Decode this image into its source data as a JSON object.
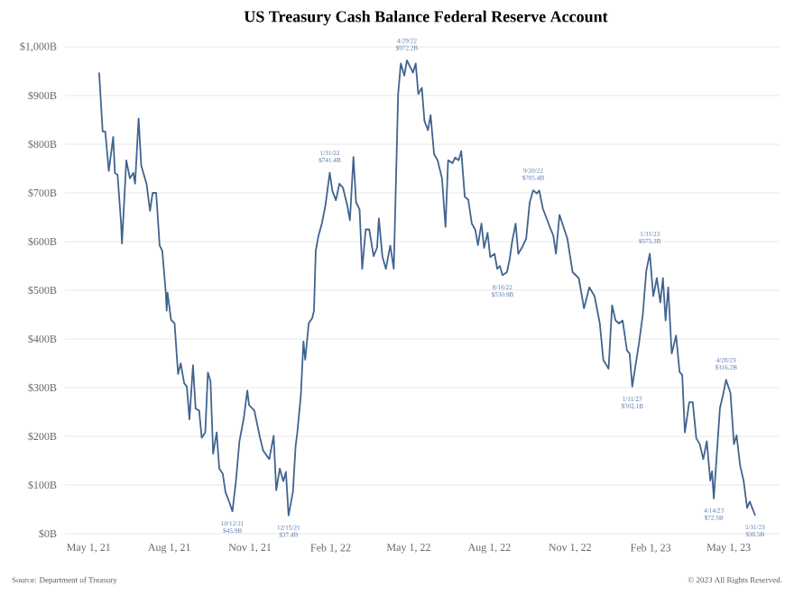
{
  "chart_data": {
    "type": "line",
    "title": "US Treasury Cash Balance Federal Reserve Account",
    "xlim": [
      "2021-04-04",
      "2023-06-28"
    ],
    "xticks": [
      {
        "value": "2021-05-01",
        "label": "May 1, 21"
      },
      {
        "value": "2021-08-01",
        "label": "Aug 1, 21"
      },
      {
        "value": "2021-11-01",
        "label": "Nov 1, 21"
      },
      {
        "value": "2022-02-01",
        "label": "Feb 1, 22"
      },
      {
        "value": "2022-05-01",
        "label": "May 1, 22"
      },
      {
        "value": "2022-08-01",
        "label": "Aug 1, 22"
      },
      {
        "value": "2022-11-01",
        "label": "Nov 1, 22"
      },
      {
        "value": "2023-02-01",
        "label": "Feb 1, 23"
      },
      {
        "value": "2023-05-01",
        "label": "May 1, 23"
      }
    ],
    "ylim": [
      0,
      1000
    ],
    "yticks": [
      {
        "value": 0,
        "label": "$0B"
      },
      {
        "value": 100,
        "label": "$100B"
      },
      {
        "value": 200,
        "label": "$200B"
      },
      {
        "value": 300,
        "label": "$300B"
      },
      {
        "value": 400,
        "label": "$400B"
      },
      {
        "value": 500,
        "label": "$500B"
      },
      {
        "value": 600,
        "label": "$600B"
      },
      {
        "value": 700,
        "label": "$700B"
      },
      {
        "value": 800,
        "label": "$800B"
      },
      {
        "value": 900,
        "label": "$900B"
      },
      {
        "value": 1000,
        "label": "$1,000B"
      }
    ],
    "grid": "y",
    "series": [
      {
        "color": "#41648f",
        "x": [
          "2021-05-13",
          "2021-05-17",
          "2021-05-20",
          "2021-05-24",
          "2021-05-29",
          "2021-05-31",
          "2021-06-03",
          "2021-06-07",
          "2021-06-08",
          "2021-06-13",
          "2021-06-17",
          "2021-06-21",
          "2021-06-23",
          "2021-06-27",
          "2021-06-30",
          "2021-07-06",
          "2021-07-10",
          "2021-07-13",
          "2021-07-17",
          "2021-07-21",
          "2021-07-24",
          "2021-07-28",
          "2021-07-29",
          "2021-07-30",
          "2021-08-03",
          "2021-08-07",
          "2021-08-11",
          "2021-08-14",
          "2021-08-18",
          "2021-08-21",
          "2021-08-24",
          "2021-08-28",
          "2021-08-31",
          "2021-09-04",
          "2021-09-07",
          "2021-09-11",
          "2021-09-14",
          "2021-09-17",
          "2021-09-20",
          "2021-09-24",
          "2021-09-27",
          "2021-10-01",
          "2021-10-04",
          "2021-10-08",
          "2021-10-12",
          "2021-10-16",
          "2021-10-20",
          "2021-10-25",
          "2021-10-29",
          "2021-10-31",
          "2021-11-06",
          "2021-11-12",
          "2021-11-16",
          "2021-11-23",
          "2021-11-28",
          "2021-12-01",
          "2021-12-05",
          "2021-12-09",
          "2021-12-12",
          "2021-12-15",
          "2021-12-20",
          "2021-12-23",
          "2021-12-25",
          "2021-12-29",
          "2022-01-01",
          "2022-01-03",
          "2022-01-07",
          "2022-01-11",
          "2022-01-13",
          "2022-01-15",
          "2022-01-18",
          "2022-01-22",
          "2022-01-26",
          "2022-01-31",
          "2022-02-03",
          "2022-02-07",
          "2022-02-11",
          "2022-02-15",
          "2022-02-20",
          "2022-02-23",
          "2022-02-27",
          "2022-03-02",
          "2022-03-06",
          "2022-03-09",
          "2022-03-13",
          "2022-03-17",
          "2022-03-22",
          "2022-03-26",
          "2022-03-28",
          "2022-04-01",
          "2022-04-05",
          "2022-04-10",
          "2022-04-14",
          "2022-04-19",
          "2022-04-22",
          "2022-04-26",
          "2022-04-29",
          "2022-05-06",
          "2022-05-09",
          "2022-05-12",
          "2022-05-16",
          "2022-05-19",
          "2022-05-23",
          "2022-05-26",
          "2022-05-30",
          "2022-06-03",
          "2022-06-08",
          "2022-06-12",
          "2022-06-15",
          "2022-06-20",
          "2022-06-23",
          "2022-06-27",
          "2022-06-30",
          "2022-07-04",
          "2022-07-08",
          "2022-07-12",
          "2022-07-16",
          "2022-07-19",
          "2022-07-23",
          "2022-07-26",
          "2022-07-30",
          "2022-08-02",
          "2022-08-07",
          "2022-08-10",
          "2022-08-13",
          "2022-08-16",
          "2022-08-21",
          "2022-08-24",
          "2022-08-27",
          "2022-08-31",
          "2022-09-03",
          "2022-09-07",
          "2022-09-12",
          "2022-09-16",
          "2022-09-20",
          "2022-09-24",
          "2022-09-27",
          "2022-10-01",
          "2022-10-05",
          "2022-10-09",
          "2022-10-13",
          "2022-10-16",
          "2022-10-20",
          "2022-10-29",
          "2022-11-04",
          "2022-11-11",
          "2022-11-17",
          "2022-11-23",
          "2022-11-29",
          "2022-12-05",
          "2022-12-09",
          "2022-12-15",
          "2022-12-19",
          "2022-12-23",
          "2022-12-27",
          "2022-12-31",
          "2023-01-05",
          "2023-01-08",
          "2023-01-11",
          "2023-01-19",
          "2023-01-23",
          "2023-01-27",
          "2023-01-31",
          "2023-02-04",
          "2023-02-08",
          "2023-02-12",
          "2023-02-15",
          "2023-02-18",
          "2023-02-21",
          "2023-02-25",
          "2023-03-02",
          "2023-03-06",
          "2023-03-09",
          "2023-03-12",
          "2023-03-17",
          "2023-03-21",
          "2023-03-25",
          "2023-03-29",
          "2023-04-02",
          "2023-04-06",
          "2023-04-10",
          "2023-04-12",
          "2023-04-14",
          "2023-04-21",
          "2023-04-25",
          "2023-04-28",
          "2023-05-03",
          "2023-05-07",
          "2023-05-10",
          "2023-05-14",
          "2023-05-18",
          "2023-05-22",
          "2023-05-25",
          "2023-05-31"
        ],
        "values": [
          946,
          826,
          826,
          745,
          815,
          741,
          737,
          637,
          596,
          767,
          730,
          741,
          719,
          853,
          756,
          719,
          663,
          700,
          700,
          592,
          581,
          495,
          458,
          495,
          439,
          432,
          328,
          350,
          309,
          302,
          235,
          346,
          257,
          253,
          197,
          208,
          331,
          313,
          164,
          208,
          134,
          123,
          86,
          67,
          45.9,
          108,
          190,
          238,
          294,
          264,
          253,
          201,
          171,
          153,
          201,
          89,
          134,
          108,
          127,
          37.4,
          86,
          179,
          208,
          283,
          395,
          357,
          432,
          443,
          458,
          581,
          611,
          637,
          674,
          741.4,
          704,
          685,
          719,
          711,
          674,
          644,
          774,
          681,
          666,
          544,
          625,
          625,
          570,
          588,
          648,
          570,
          544,
          592,
          544,
          903,
          966,
          941,
          972.2,
          947,
          966,
          903,
          916,
          848,
          829,
          860,
          779,
          767,
          730,
          630,
          767,
          761,
          773,
          767,
          786,
          692,
          686,
          637,
          624,
          593,
          637,
          587,
          618,
          568,
          575,
          544,
          550,
          530.9,
          537,
          562,
          600,
          637,
          575,
          587,
          606,
          680,
          705.4,
          699,
          705,
          668,
          649,
          630,
          612,
          575,
          655,
          606,
          537,
          525,
          463,
          506,
          488,
          432,
          357,
          339,
          469,
          438,
          432,
          438,
          376,
          370,
          302.1,
          395,
          450,
          540,
          575.3,
          488,
          525,
          475,
          525,
          438,
          506,
          370,
          407,
          332,
          326,
          208,
          270,
          270,
          196,
          184,
          153,
          190,
          109,
          128,
          72.5,
          258,
          289,
          316.2,
          289,
          184,
          202,
          140,
          109,
          53,
          66,
          38.5
        ]
      }
    ],
    "annotations": [
      {
        "text": "10/12/21 $45.9B",
        "x": "2021-10-12",
        "y": 45.9
      },
      {
        "text": "12/15/21 $37.4B",
        "x": "2021-12-15",
        "y": 37.4
      },
      {
        "text": "1/31/22 $741.4B",
        "x": "2022-01-31",
        "y": 741.4
      },
      {
        "text": "4/29/22 $972.2B",
        "x": "2022-04-29",
        "y": 972.2
      },
      {
        "text": "8/16/22 $530.9B",
        "x": "2022-08-16",
        "y": 530.9
      },
      {
        "text": "9/20/22 $705.4B",
        "x": "2022-09-20",
        "y": 705.4
      },
      {
        "text": "1/11/23 $302.1B",
        "x": "2023-01-11",
        "y": 302.1
      },
      {
        "text": "1/31/23 $575.3B",
        "x": "2023-01-31",
        "y": 575.3
      },
      {
        "text": "4/14/23 $72.5B",
        "x": "2023-04-14",
        "y": 72.5
      },
      {
        "text": "4/28/23 $316.2B",
        "x": "2023-04-28",
        "y": 316.2
      },
      {
        "text": "5/31/23 $38.5B",
        "x": "2023-05-31",
        "y": 38.5
      },
      "Source: Department of Treasury",
      "© 2023 All Rights Reserved."
    ]
  }
}
